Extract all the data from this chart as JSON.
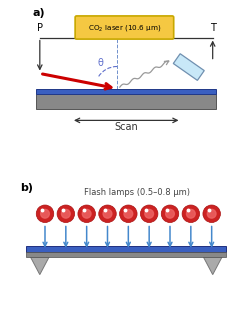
{
  "bg_color": "#ffffff",
  "panel_a_label": "a)",
  "panel_b_label": "b)",
  "laser_box_text_line1": "CO",
  "laser_box_text": "CO$_2$ laser (10.6 μm)",
  "laser_box_color": "#f5c842",
  "laser_box_edge": "#c8a800",
  "flash_label": "Flash lamps (0.5–0.8 μm)",
  "P_label": "P",
  "T_label": "T",
  "theta_label": "θ",
  "scan_label": "Scan",
  "wafer_color_top": "#3a5fc0",
  "wafer_color_main": "#888888",
  "arrow_red": "#cc0000",
  "arrow_blue": "#4488cc",
  "lamp_red_outer": "#cc2222",
  "lamp_red_inner": "#ee6666",
  "support_color": "#aaaaaa",
  "line_color": "#333333",
  "detector_color": "#c8e8f8",
  "detector_edge": "#7090b0",
  "wavy_color": "#999999",
  "dashed_color": "#7090cc",
  "theta_color": "#6070cc"
}
